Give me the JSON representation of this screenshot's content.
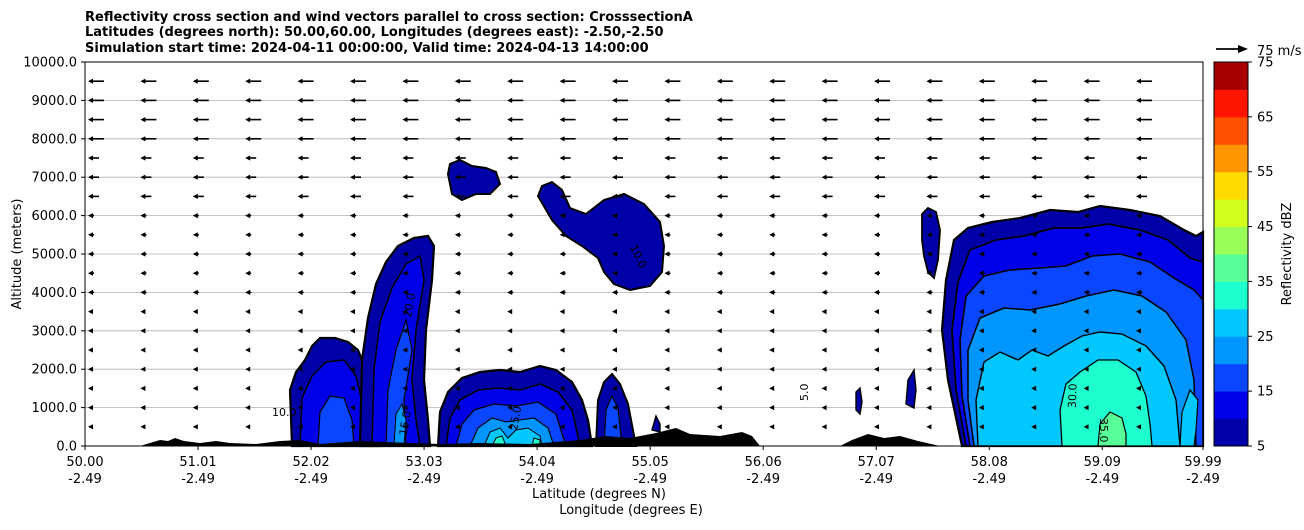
{
  "chart_data": {
    "type": "heatmap",
    "title_lines": [
      "Reflectivity cross section and wind vectors parallel to cross section: CrosssectionA",
      "Latitudes (degrees north): 50.00,60.00, Longitudes (degrees east): -2.50,-2.50",
      "Simulation start time: 2024-04-11 00:00:00, Valid time: 2024-04-13 14:00:00"
    ],
    "ylabel": "Altitude (meters)",
    "xlabel_lat": "Latitude (degrees N)",
    "xlabel_lon": "Longitude (degrees E)",
    "xlim": [
      50.0,
      59.99
    ],
    "ylim": [
      0,
      10000
    ],
    "x_ticks": [
      {
        "lat": "50.00",
        "lon": "-2.49",
        "value": 50.0
      },
      {
        "lat": "51.01",
        "lon": "-2.49",
        "value": 51.01
      },
      {
        "lat": "52.02",
        "lon": "-2.49",
        "value": 52.02
      },
      {
        "lat": "53.03",
        "lon": "-2.49",
        "value": 53.03
      },
      {
        "lat": "54.04",
        "lon": "-2.49",
        "value": 54.04
      },
      {
        "lat": "55.05",
        "lon": "-2.49",
        "value": 55.05
      },
      {
        "lat": "56.06",
        "lon": "-2.49",
        "value": 56.06
      },
      {
        "lat": "57.07",
        "lon": "-2.49",
        "value": 57.07
      },
      {
        "lat": "58.08",
        "lon": "-2.49",
        "value": 58.08
      },
      {
        "lat": "59.09",
        "lon": "-2.49",
        "value": 59.09
      },
      {
        "lat": "59.99",
        "lon": "-2.49",
        "value": 59.99
      }
    ],
    "y_ticks": [
      "0.0",
      "1000.0",
      "2000.0",
      "3000.0",
      "4000.0",
      "5000.0",
      "6000.0",
      "7000.0",
      "8000.0",
      "9000.0",
      "10000.0"
    ],
    "y_tick_values": [
      0,
      1000,
      2000,
      3000,
      4000,
      5000,
      6000,
      7000,
      8000,
      9000,
      10000
    ],
    "grid": "horizontal",
    "colorbar": {
      "label": "Reflectivity dBZ",
      "min": 5,
      "max": 75,
      "step": 5,
      "tick_labels": [
        "5",
        "15",
        "25",
        "35",
        "45",
        "55",
        "65",
        "75"
      ],
      "tick_values": [
        5,
        15,
        25,
        35,
        45,
        55,
        65,
        75
      ],
      "colors": [
        "#0000a8",
        "#0000e8",
        "#0a46ff",
        "#0096ff",
        "#00c8ff",
        "#1effd0",
        "#58ff98",
        "#98ff58",
        "#d2ff1e",
        "#ffdc00",
        "#ff9600",
        "#ff5000",
        "#ff1400",
        "#a80000"
      ]
    },
    "quiver_key": {
      "label": "75 m/s",
      "value": 75
    },
    "contour_labels": [
      "10.0",
      "5.0",
      "10.0",
      "15.0",
      "20.0",
      "25.0",
      "30.0",
      "35.0"
    ],
    "echoes": [
      {
        "lat_from": 51.85,
        "lat_to": 52.45,
        "top_m": 2500,
        "max_dbz": 20
      },
      {
        "lat_from": 52.45,
        "lat_to": 53.15,
        "top_m": 5400,
        "max_dbz": 25
      },
      {
        "lat_from": 53.15,
        "lat_to": 54.45,
        "top_m": 2000,
        "max_dbz": 30
      },
      {
        "lat_from": 54.55,
        "lat_to": 54.9,
        "top_m": 1800,
        "max_dbz": 20
      },
      {
        "lat_from": 53.2,
        "lat_to": 53.65,
        "top_m": 7300,
        "max_dbz": 10
      },
      {
        "lat_from": 54.0,
        "lat_to": 55.2,
        "top_m": 6700,
        "max_dbz": 10
      },
      {
        "lat_from": 57.4,
        "lat_to": 57.6,
        "top_m": 6000,
        "max_dbz": 10
      },
      {
        "lat_from": 57.7,
        "lat_to": 59.99,
        "top_m": 6100,
        "max_dbz": 35
      }
    ]
  }
}
